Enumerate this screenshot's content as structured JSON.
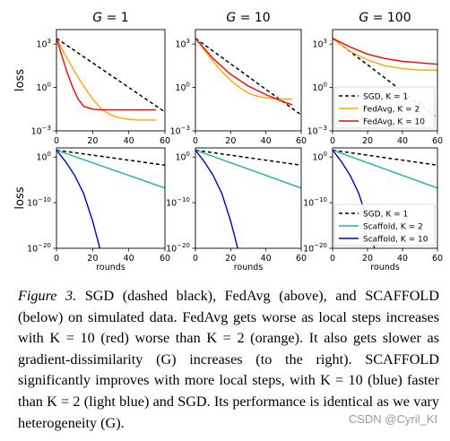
{
  "chart_data": [
    {
      "type": "line",
      "panel": "top-G1",
      "title_italic": "G",
      "title_rest": " = 1",
      "ylabel": "loss",
      "xlabel": "",
      "xlim": [
        0,
        60
      ],
      "ylim": [
        -3,
        4
      ],
      "yscale": "log",
      "xticks": [
        "0",
        "20",
        "40",
        "60"
      ],
      "ytick_values": [
        3,
        0,
        -3
      ],
      "ytick_labels": [
        "10",
        "10",
        "10"
      ],
      "ytick_exps": [
        "3",
        "0",
        "−3"
      ],
      "series": [
        {
          "color": "#000000",
          "dash": true,
          "points": [
            [
              0,
              3.4
            ],
            [
              60,
              -1.7
            ]
          ]
        },
        {
          "color": "#ffa500",
          "points": [
            [
              0,
              3.4
            ],
            [
              5,
              2.2
            ],
            [
              10,
              1.1
            ],
            [
              15,
              0.1
            ],
            [
              20,
              -0.8
            ],
            [
              25,
              -1.5
            ],
            [
              30,
              -1.9
            ],
            [
              35,
              -2.1
            ],
            [
              40,
              -2.2
            ],
            [
              45,
              -2.25
            ],
            [
              55,
              -2.25
            ]
          ]
        },
        {
          "color": "#ff0000",
          "points": [
            [
              0,
              3.4
            ],
            [
              3,
              2.2
            ],
            [
              6,
              1.0
            ],
            [
              9,
              0.0
            ],
            [
              12,
              -0.8
            ],
            [
              15,
              -1.3
            ],
            [
              20,
              -1.5
            ],
            [
              25,
              -1.55
            ],
            [
              55,
              -1.55
            ]
          ]
        }
      ]
    },
    {
      "type": "line",
      "panel": "top-G10",
      "title_italic": "G",
      "title_rest": " = 10",
      "ylabel": "",
      "xlabel": "",
      "xlim": [
        0,
        60
      ],
      "ylim": [
        -3,
        4
      ],
      "yscale": "log",
      "xticks": [
        "0",
        "20",
        "40",
        "60"
      ],
      "ytick_values": [
        3,
        0,
        -3
      ],
      "ytick_labels": [
        "10",
        "10",
        "10"
      ],
      "ytick_exps": [
        "3",
        "0",
        "−3"
      ],
      "series": [
        {
          "color": "#000000",
          "dash": true,
          "points": [
            [
              0,
              3.4
            ],
            [
              60,
              -1.9
            ]
          ]
        },
        {
          "color": "#ffa500",
          "points": [
            [
              0,
              3.4
            ],
            [
              5,
              2.6
            ],
            [
              10,
              1.8
            ],
            [
              15,
              1.1
            ],
            [
              20,
              0.5
            ],
            [
              25,
              0.0
            ],
            [
              30,
              -0.4
            ],
            [
              35,
              -0.6
            ],
            [
              40,
              -0.72
            ],
            [
              45,
              -0.78
            ],
            [
              50,
              -0.8
            ],
            [
              55,
              -0.8
            ]
          ]
        },
        {
          "color": "#ff0000",
          "points": [
            [
              0,
              3.4
            ],
            [
              10,
              2.0
            ],
            [
              20,
              0.9
            ],
            [
              30,
              0.1
            ],
            [
              40,
              -0.5
            ],
            [
              50,
              -1.0
            ],
            [
              55,
              -1.2
            ]
          ]
        }
      ]
    },
    {
      "type": "line",
      "panel": "top-G100",
      "title_italic": "G",
      "title_rest": " = 100",
      "ylabel": "",
      "xlabel": "",
      "xlim": [
        0,
        60
      ],
      "ylim": [
        -3,
        4
      ],
      "yscale": "log",
      "xticks": [
        "0",
        "20",
        "40",
        "60"
      ],
      "ytick_values": [
        3,
        0,
        -3
      ],
      "ytick_labels": [
        "10",
        "10",
        "10"
      ],
      "ytick_exps": [
        "3",
        "0",
        "−3"
      ],
      "legend": [
        {
          "color": "#000000",
          "dash": true,
          "label": "SGD, K = 1"
        },
        {
          "color": "#ffa500",
          "label": "FedAvg, K = 2"
        },
        {
          "color": "#ff0000",
          "label": "FedAvg, K = 10"
        }
      ],
      "series": [
        {
          "color": "#000000",
          "dash": true,
          "points": [
            [
              0,
              3.4
            ],
            [
              60,
              -2.1
            ]
          ]
        },
        {
          "color": "#ffa500",
          "points": [
            [
              0,
              3.4
            ],
            [
              10,
              2.5
            ],
            [
              20,
              1.9
            ],
            [
              30,
              1.5
            ],
            [
              40,
              1.3
            ],
            [
              50,
              1.2
            ],
            [
              60,
              1.2
            ]
          ]
        },
        {
          "color": "#ff0000",
          "points": [
            [
              0,
              3.4
            ],
            [
              10,
              2.8
            ],
            [
              20,
              2.3
            ],
            [
              30,
              2.0
            ],
            [
              40,
              1.8
            ],
            [
              50,
              1.7
            ],
            [
              60,
              1.6
            ]
          ]
        }
      ]
    },
    {
      "type": "line",
      "panel": "bottom-G1",
      "ylabel": "loss",
      "xlabel": "",
      "xlim": [
        0,
        60
      ],
      "ylim": [
        -20,
        2
      ],
      "yscale": "log",
      "xticks": [
        "0",
        "20",
        "40",
        "60"
      ],
      "ytick_values": [
        0,
        -10,
        -20
      ],
      "ytick_labels": [
        "10",
        "10",
        "10"
      ],
      "ytick_exps": [
        "0",
        "−10",
        "−20"
      ],
      "series": [
        {
          "color": "#000000",
          "dash": true,
          "points": [
            [
              0,
              1.5
            ],
            [
              60,
              -1.8
            ]
          ]
        },
        {
          "color": "#20b2aa",
          "points": [
            [
              0,
              1.5
            ],
            [
              60,
              -6.8
            ]
          ]
        },
        {
          "color": "#0000cc",
          "points": [
            [
              0,
              1.5
            ],
            [
              5,
              -1.0
            ],
            [
              10,
              -4.0
            ],
            [
              15,
              -8.0
            ],
            [
              20,
              -14.0
            ],
            [
              24,
              -20.0
            ]
          ]
        }
      ]
    },
    {
      "type": "line",
      "panel": "bottom-G10",
      "ylabel": "",
      "xlabel": "",
      "xlim": [
        0,
        60
      ],
      "ylim": [
        -20,
        2
      ],
      "yscale": "log",
      "xticks": [
        "0",
        "20",
        "40",
        "60"
      ],
      "ytick_values": [
        0,
        -10,
        -20
      ],
      "ytick_labels": [
        "10",
        "10",
        "10"
      ],
      "ytick_exps": [
        "0",
        "−10",
        "−20"
      ],
      "series": [
        {
          "color": "#000000",
          "dash": true,
          "points": [
            [
              0,
              1.5
            ],
            [
              60,
              -1.8
            ]
          ]
        },
        {
          "color": "#20b2aa",
          "points": [
            [
              0,
              1.5
            ],
            [
              60,
              -6.8
            ]
          ]
        },
        {
          "color": "#0000cc",
          "points": [
            [
              0,
              1.5
            ],
            [
              5,
              -1.0
            ],
            [
              10,
              -4.0
            ],
            [
              15,
              -8.0
            ],
            [
              20,
              -14.0
            ],
            [
              24,
              -20.0
            ]
          ]
        }
      ]
    },
    {
      "type": "line",
      "panel": "bottom-G100",
      "ylabel": "",
      "xlabel": "",
      "xlim": [
        0,
        60
      ],
      "ylim": [
        -20,
        2
      ],
      "yscale": "log",
      "xticks": [
        "0",
        "20",
        "40",
        "60"
      ],
      "ytick_values": [
        0,
        -10,
        -20
      ],
      "ytick_labels": [
        "10",
        "10",
        "10"
      ],
      "ytick_exps": [
        "0",
        "−10",
        "−20"
      ],
      "legend": [
        {
          "color": "#000000",
          "dash": true,
          "label": "SGD, K = 1"
        },
        {
          "color": "#20b2aa",
          "label": "Scaffold, K = 2"
        },
        {
          "color": "#0000cc",
          "label": "Scaffold, K = 10"
        }
      ],
      "series": [
        {
          "color": "#000000",
          "dash": true,
          "points": [
            [
              0,
              1.5
            ],
            [
              60,
              -1.8
            ]
          ]
        },
        {
          "color": "#20b2aa",
          "points": [
            [
              0,
              1.5
            ],
            [
              60,
              -6.8
            ]
          ]
        },
        {
          "color": "#0000cc",
          "points": [
            [
              0,
              1.5
            ],
            [
              5,
              -1.0
            ],
            [
              10,
              -4.0
            ],
            [
              15,
              -8.0
            ],
            [
              20,
              -14.0
            ],
            [
              24,
              -20.0
            ]
          ]
        }
      ]
    }
  ],
  "xlabel_bottom": "rounds",
  "caption": {
    "label": "Figure 3.",
    "text": " SGD (dashed black), FedAvg (above), and SCAFFOLD (below) on simulated data. FedAvg gets worse as local steps increases with K = 10 (red) worse than K = 2 (orange). It also gets slower as gradient-dissimilarity (G) increases (to the right). SCAFFOLD significantly improves with more local steps, with K = 10 (blue) faster than K = 2 (light blue) and SGD. Its performance is identical as we vary heterogeneity (G)."
  },
  "watermark": "CSDN @Cyril_KI"
}
